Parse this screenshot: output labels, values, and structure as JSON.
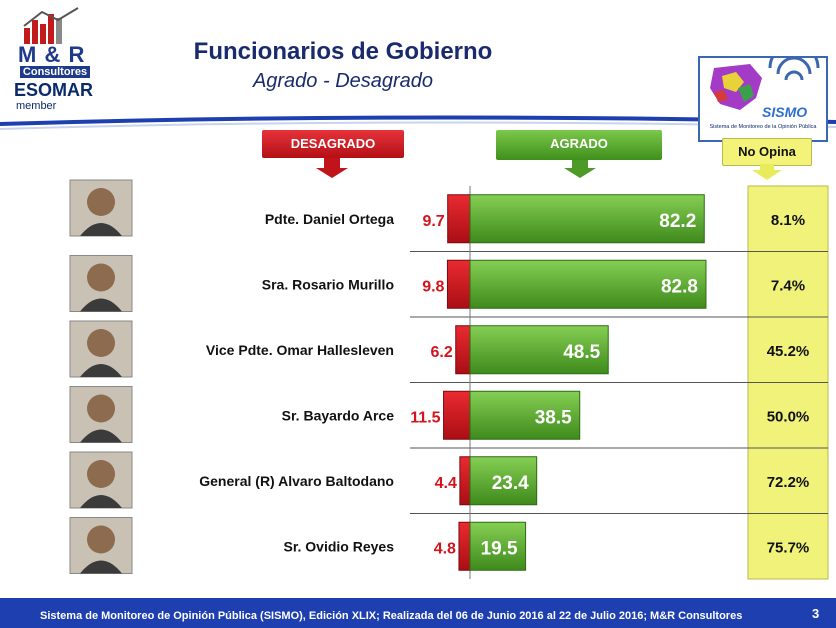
{
  "branding": {
    "logo_text": "M & R",
    "logo_sub": "Consultores",
    "esomar": "ESOMAR",
    "member": "member",
    "sismo_word": "SISMO",
    "sismo_caption": "Sistema de Monitoreo de la Opinión Pública"
  },
  "title": "Funcionarios de Gobierno",
  "subtitle": "Agrado - Desagrado",
  "headers": {
    "desagrado": "DESAGRADO",
    "agrado": "AGRADO",
    "no_opina": "No Opina"
  },
  "colors": {
    "desagrado": "#d3141c",
    "agrado": "#5fa832",
    "no_opina": "#f0f27a",
    "navy": "#1a2b6d",
    "footer": "#1e3fb0"
  },
  "chart_data": {
    "type": "bar",
    "categories": [
      "Pdte. Daniel Ortega",
      "Sra. Rosario Murillo",
      "Vice Pdte. Omar Hallesleven",
      "Sr. Bayardo Arce",
      "General (R) Alvaro Baltodano",
      "Sr. Ovidio Reyes"
    ],
    "series": [
      {
        "name": "DESAGRADO",
        "values": [
          9.7,
          9.8,
          6.2,
          11.5,
          4.4,
          4.8
        ]
      },
      {
        "name": "AGRADO",
        "values": [
          82.2,
          82.8,
          48.5,
          38.5,
          23.4,
          19.5
        ]
      },
      {
        "name": "No Opina",
        "values": [
          8.1,
          7.4,
          45.2,
          50.0,
          72.2,
          75.7
        ]
      }
    ],
    "no_opina_labels": [
      "8.1%",
      "7.4%",
      "45.2%",
      "50.0%",
      "72.2%",
      "75.7%"
    ]
  },
  "footer": {
    "text": "Sistema de Monitoreo de Opinión Pública (SISMO), Edición XLIX; Realizada del 06 de Junio 2016 al 22 de Julio 2016; M&R Consultores",
    "page": "3"
  }
}
